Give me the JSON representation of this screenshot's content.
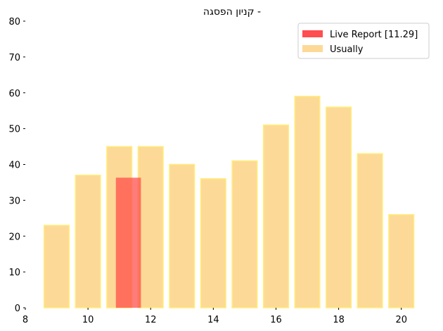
{
  "chart_data": {
    "type": "bar",
    "title": "קניון הפסגה -",
    "xlabel": "",
    "ylabel": "",
    "xlim": [
      8,
      20.5
    ],
    "ylim": [
      0,
      80
    ],
    "xticks": [
      8,
      10,
      12,
      14,
      16,
      18,
      20
    ],
    "yticks": [
      0,
      10,
      20,
      30,
      40,
      50,
      60,
      70,
      80
    ],
    "grid": false,
    "legend_position": "top-right",
    "series": [
      {
        "name": "Usually",
        "color": "#fdd998",
        "edge_color": "#ffee7a",
        "x": [
          9,
          10,
          11,
          12,
          13,
          14,
          15,
          16,
          17,
          18,
          19,
          20
        ],
        "values": [
          23,
          37,
          45,
          45,
          40,
          36,
          41,
          51,
          59,
          56,
          43,
          26
        ]
      },
      {
        "name": "Live Report [11.29]",
        "color": "#ff4444",
        "x": [
          11.29
        ],
        "values": [
          36.3
        ]
      }
    ]
  }
}
